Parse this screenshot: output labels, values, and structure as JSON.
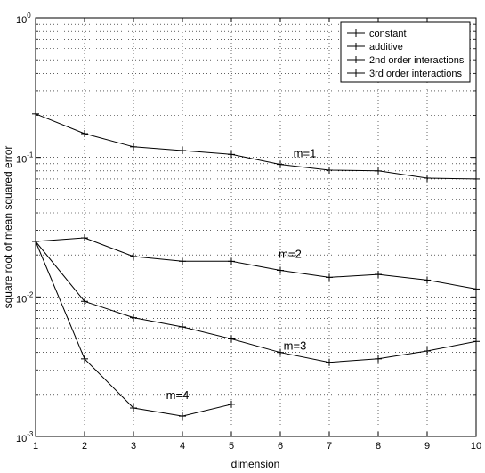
{
  "chart_data": {
    "type": "line",
    "xlabel": "dimension",
    "ylabel": "square root of mean squared error",
    "x": [
      1,
      2,
      3,
      4,
      5,
      6,
      7,
      8,
      9,
      10
    ],
    "xlim": [
      1,
      10
    ],
    "ylim": [
      0.001,
      1
    ],
    "y_scale": "log",
    "grid": true,
    "legend_position": "top-right",
    "x_ticks": [
      "1",
      "2",
      "3",
      "4",
      "5",
      "6",
      "7",
      "8",
      "9",
      "10"
    ],
    "y_ticks": [
      {
        "base": "10",
        "exp": "-3",
        "value": 0.001
      },
      {
        "base": "10",
        "exp": "-2",
        "value": 0.01
      },
      {
        "base": "10",
        "exp": "-1",
        "value": 0.1
      },
      {
        "base": "10",
        "exp": "0",
        "value": 1
      }
    ],
    "legend": [
      "constant",
      "additive",
      "2nd order interactions",
      "3rd order interactions"
    ],
    "series": [
      {
        "name": "constant",
        "label": "m=1",
        "x": [
          1,
          2,
          3,
          4,
          5,
          6,
          7,
          8,
          9,
          10
        ],
        "values": [
          0.205,
          0.148,
          0.119,
          0.112,
          0.105,
          0.089,
          0.081,
          0.08,
          0.071,
          0.07
        ]
      },
      {
        "name": "additive",
        "label": "m=2",
        "x": [
          1,
          2,
          3,
          4,
          5,
          6,
          7,
          8,
          9,
          10
        ],
        "values": [
          0.025,
          0.0265,
          0.0195,
          0.018,
          0.018,
          0.0155,
          0.0138,
          0.0145,
          0.0132,
          0.0114
        ]
      },
      {
        "name": "2nd order interactions",
        "label": "m=3",
        "x": [
          1,
          2,
          3,
          4,
          5,
          6,
          7,
          8,
          9,
          10
        ],
        "values": [
          0.025,
          0.0093,
          0.0071,
          0.0061,
          0.005,
          0.004,
          0.0034,
          0.0036,
          0.0041,
          0.0048
        ]
      },
      {
        "name": "3rd order interactions",
        "label": "m=4",
        "x": [
          1,
          2,
          3,
          4,
          5
        ],
        "values": [
          0.025,
          0.0036,
          0.0016,
          0.0014,
          0.0017
        ]
      }
    ],
    "annotations": [
      {
        "text": "m=1",
        "x": 6.5,
        "y": 0.1
      },
      {
        "text": "m=2",
        "x": 6.2,
        "y": 0.019
      },
      {
        "text": "m=3",
        "x": 6.3,
        "y": 0.0042
      },
      {
        "text": "m=4",
        "x": 3.9,
        "y": 0.00185
      }
    ]
  }
}
